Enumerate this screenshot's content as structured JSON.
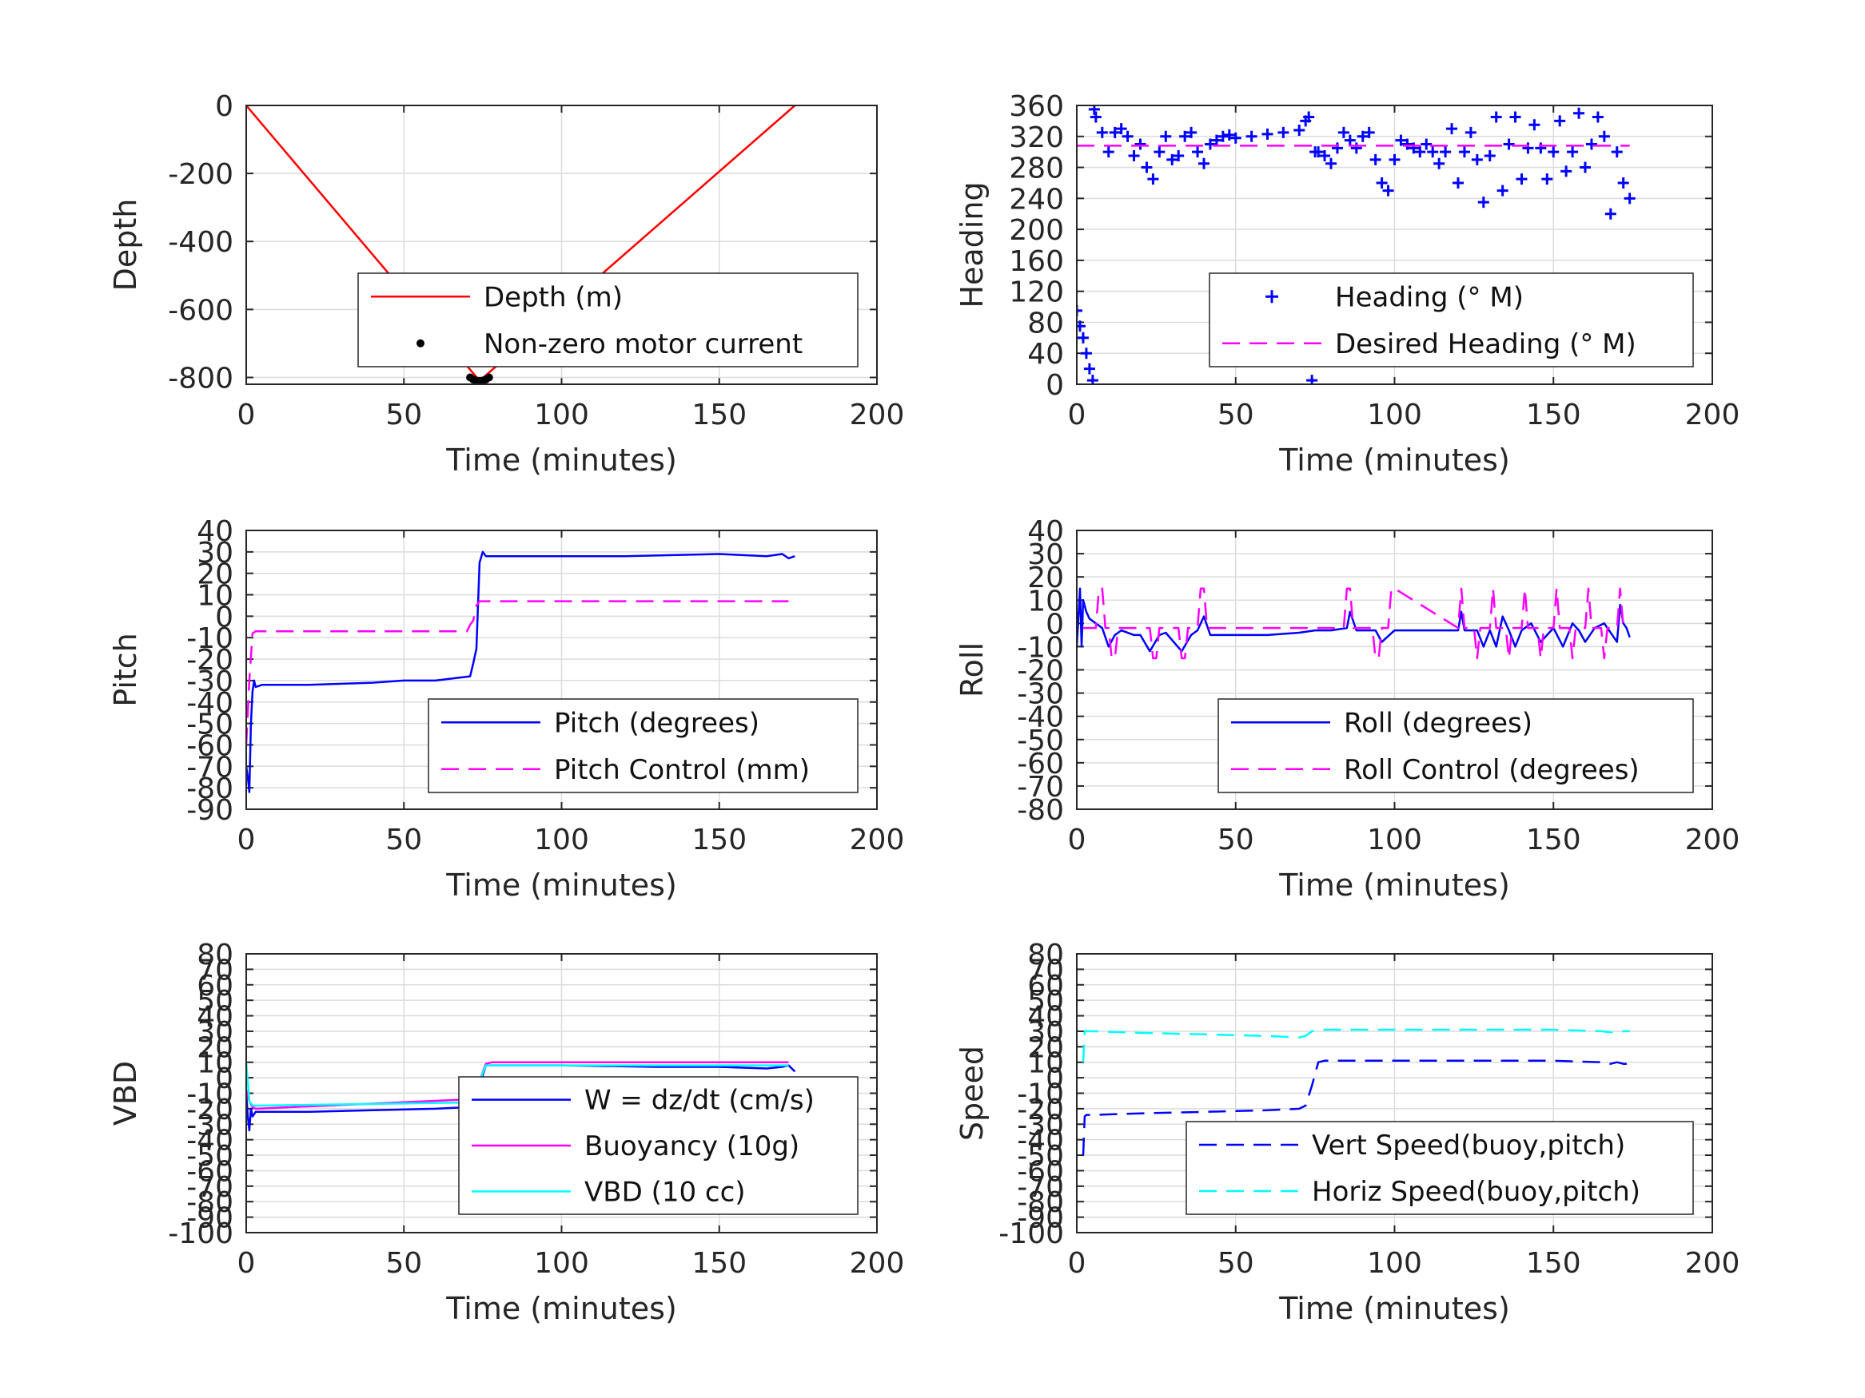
{
  "chart_data": [
    {
      "type": "line",
      "xlabel": "Time (minutes)",
      "ylabel": "Depth",
      "xlim": [
        0,
        200
      ],
      "ylim": [
        -820,
        0
      ],
      "xticks": [
        "0",
        "50",
        "100",
        "150",
        "200"
      ],
      "yticks": [
        "0",
        "-200",
        "-400",
        "-600",
        "-800"
      ],
      "grid": true,
      "legend_position": "bottom-right",
      "series": [
        {
          "name": "Depth (m)",
          "color": "#ff0000",
          "style": "solid",
          "marker": "none",
          "x": [
            0,
            74,
            174
          ],
          "y": [
            0,
            -810,
            0
          ]
        },
        {
          "name": "Non-zero motor current",
          "color": "#000000",
          "style": "none",
          "marker": "dot",
          "x": [
            71,
            72,
            73,
            74,
            75,
            76,
            77
          ],
          "y": [
            -800,
            -806,
            -809,
            -810,
            -809,
            -806,
            -800
          ]
        }
      ]
    },
    {
      "type": "scatter",
      "xlabel": "Time (minutes)",
      "ylabel": "Heading",
      "xlim": [
        0,
        200
      ],
      "ylim": [
        0,
        360
      ],
      "xticks": [
        "0",
        "50",
        "100",
        "150",
        "200"
      ],
      "yticks": [
        "0",
        "40",
        "80",
        "120",
        "160",
        "200",
        "240",
        "280",
        "320",
        "360"
      ],
      "grid": true,
      "legend_position": "bottom-right",
      "series": [
        {
          "name": "Heading (° M)",
          "color": "#0000ff",
          "style": "none",
          "marker": "plus",
          "x": [
            0,
            1,
            2,
            3,
            4,
            5,
            5.5,
            6,
            8,
            10,
            12,
            14,
            16,
            18,
            20,
            22,
            24,
            26,
            28,
            30,
            32,
            34,
            36,
            38,
            40,
            42,
            44,
            46,
            48,
            50,
            55,
            60,
            65,
            70,
            72,
            73,
            74,
            75,
            76,
            78,
            80,
            82,
            84,
            86,
            88,
            90,
            92,
            94,
            96,
            98,
            100,
            102,
            104,
            106,
            108,
            110,
            112,
            114,
            116,
            118,
            120,
            122,
            124,
            126,
            128,
            130,
            132,
            134,
            136,
            138,
            140,
            142,
            144,
            146,
            148,
            150,
            152,
            154,
            156,
            158,
            160,
            162,
            164,
            166,
            168,
            170,
            172,
            174
          ],
          "y": [
            95,
            75,
            60,
            40,
            20,
            5,
            355,
            345,
            325,
            300,
            325,
            330,
            320,
            295,
            310,
            280,
            265,
            300,
            320,
            290,
            295,
            320,
            325,
            300,
            285,
            310,
            315,
            320,
            322,
            318,
            320,
            323,
            325,
            328,
            340,
            345,
            5,
            300,
            300,
            295,
            285,
            305,
            325,
            315,
            305,
            320,
            325,
            290,
            260,
            250,
            290,
            315,
            310,
            305,
            300,
            310,
            300,
            285,
            300,
            330,
            260,
            300,
            325,
            290,
            235,
            295,
            345,
            250,
            310,
            345,
            265,
            305,
            335,
            305,
            265,
            300,
            340,
            275,
            300,
            350,
            280,
            310,
            345,
            320,
            220,
            300,
            260,
            240
          ]
        },
        {
          "name": "Desired Heading (° M)",
          "color": "#ff00ff",
          "style": "dashed",
          "marker": "none",
          "x": [
            0,
            174
          ],
          "y": [
            308,
            308
          ]
        }
      ]
    },
    {
      "type": "line",
      "xlabel": "Time (minutes)",
      "ylabel": "Pitch",
      "xlim": [
        0,
        200
      ],
      "ylim": [
        -90,
        40
      ],
      "xticks": [
        "0",
        "50",
        "100",
        "150",
        "200"
      ],
      "yticks": [
        "40",
        "30",
        "20",
        "10",
        "0",
        "-10",
        "-20",
        "-30",
        "-40",
        "-50",
        "-60",
        "-70",
        "-80",
        "-90"
      ],
      "grid": true,
      "legend_position": "bottom-right",
      "series": [
        {
          "name": "Pitch (degrees)",
          "color": "#0000ff",
          "style": "solid",
          "marker": "none",
          "x": [
            0,
            0.5,
            1,
            1.5,
            2,
            2.5,
            3,
            5,
            20,
            40,
            50,
            60,
            71,
            72,
            73,
            74,
            75,
            76,
            80,
            100,
            120,
            150,
            165,
            170,
            172,
            174
          ],
          "y": [
            -70,
            -75,
            -82,
            -50,
            -35,
            -30,
            -33,
            -32,
            -32,
            -31,
            -30,
            -30,
            -28,
            -22,
            -15,
            25,
            30,
            28,
            28,
            28,
            28,
            29,
            28,
            29,
            27,
            28
          ]
        },
        {
          "name": "Pitch Control (mm)",
          "color": "#ff00ff",
          "style": "dashed",
          "marker": "none",
          "x": [
            0,
            1,
            2,
            3,
            5,
            70,
            71,
            72,
            73,
            74,
            75,
            76,
            172
          ],
          "y": [
            -60,
            -30,
            -8,
            -7,
            -7,
            -7,
            -4,
            -2,
            5,
            7,
            7,
            7,
            7
          ]
        }
      ]
    },
    {
      "type": "line",
      "xlabel": "Time (minutes)",
      "ylabel": "Roll",
      "xlim": [
        0,
        200
      ],
      "ylim": [
        -80,
        40
      ],
      "xticks": [
        "0",
        "50",
        "100",
        "150",
        "200"
      ],
      "yticks": [
        "40",
        "30",
        "20",
        "10",
        "0",
        "-10",
        "-20",
        "-30",
        "-40",
        "-50",
        "-60",
        "-70",
        "-80"
      ],
      "grid": true,
      "legend_position": "bottom-right",
      "series": [
        {
          "name": "Roll (degrees)",
          "color": "#0000ff",
          "style": "solid",
          "marker": "none",
          "x": [
            0,
            1,
            1.5,
            2,
            3,
            4,
            6,
            8,
            10,
            12,
            14,
            18,
            20,
            23,
            26,
            28,
            33,
            36,
            38,
            40,
            42,
            45,
            60,
            70,
            75,
            80,
            85,
            86,
            88,
            94,
            96,
            100,
            110,
            120,
            121,
            122,
            126,
            128,
            130,
            132,
            134,
            136,
            138,
            140,
            143,
            146,
            150,
            153,
            156,
            158,
            160,
            163,
            166,
            170,
            171,
            172,
            173,
            174
          ],
          "y": [
            -10,
            15,
            -10,
            10,
            5,
            2,
            0,
            -2,
            -10,
            -5,
            -3,
            -5,
            -5,
            -12,
            -5,
            -4,
            -12,
            -5,
            -3,
            3,
            -5,
            -5,
            -5,
            -4,
            -3,
            -3,
            -2,
            5,
            -3,
            -3,
            -8,
            -3,
            -3,
            -3,
            5,
            -3,
            -3,
            -10,
            -3,
            -10,
            3,
            -3,
            -10,
            -3,
            0,
            -8,
            -2,
            -10,
            0,
            -3,
            -8,
            -2,
            0,
            -8,
            8,
            0,
            -2,
            -6
          ]
        },
        {
          "name": "Roll Control (degrees)",
          "color": "#ff00ff",
          "style": "dashed",
          "marker": "none",
          "x": [
            2,
            3,
            6,
            7,
            8,
            9,
            10,
            11,
            12,
            13,
            14,
            18,
            19,
            20,
            22,
            23,
            24,
            25,
            26,
            27,
            28,
            30,
            31,
            32,
            33,
            34,
            35,
            36,
            37,
            38,
            39,
            40,
            41,
            42,
            43,
            44,
            45,
            46,
            60,
            70,
            75,
            80,
            84,
            85,
            86,
            87,
            90,
            93,
            94,
            95,
            96,
            98,
            99,
            100,
            120,
            121,
            122,
            125,
            126,
            127,
            130,
            131,
            132,
            135,
            136,
            137,
            140,
            141,
            142,
            145,
            146,
            147,
            150,
            151,
            152,
            155,
            156,
            157,
            160,
            161,
            162,
            165,
            166,
            167,
            170,
            171,
            172
          ],
          "y": [
            -2,
            -2,
            -2,
            15,
            15,
            -2,
            -2,
            -15,
            -15,
            -2,
            -2,
            -2,
            -2,
            -2,
            -2,
            -2,
            -15,
            -15,
            -2,
            -2,
            -2,
            -2,
            -2,
            -2,
            -15,
            -15,
            -2,
            -2,
            -2,
            -2,
            15,
            15,
            -2,
            -2,
            -2,
            -2,
            -2,
            -2,
            -2,
            -2,
            -2,
            -2,
            -2,
            15,
            15,
            -2,
            -2,
            -2,
            -15,
            -15,
            -2,
            -2,
            15,
            15,
            -2,
            15,
            -2,
            -2,
            -15,
            -2,
            -2,
            15,
            -2,
            -2,
            -15,
            -2,
            -2,
            15,
            -2,
            -2,
            -15,
            -2,
            -2,
            15,
            -2,
            -2,
            -15,
            -2,
            -2,
            15,
            -2,
            -2,
            -15,
            -2,
            -2,
            15,
            -2
          ]
        }
      ]
    },
    {
      "type": "line",
      "xlabel": "Time (minutes)",
      "ylabel": "VBD",
      "xlim": [
        0,
        200
      ],
      "ylim": [
        -100,
        80
      ],
      "xticks": [
        "0",
        "50",
        "100",
        "150",
        "200"
      ],
      "yticks": [
        "80",
        "70",
        "60",
        "50",
        "40",
        "30",
        "20",
        "10",
        "0",
        "-10",
        "-20",
        "-30",
        "-40",
        "-50",
        "-60",
        "-70",
        "-80",
        "-90",
        "-100"
      ],
      "grid": true,
      "legend_position": "bottom-right",
      "series": [
        {
          "name": "W = dz/dt (cm/s)",
          "color": "#0000ff",
          "style": "solid",
          "marker": "none",
          "x": [
            0,
            0.5,
            1,
            1.5,
            2,
            3,
            5,
            20,
            40,
            60,
            70,
            72,
            74,
            76,
            78,
            100,
            130,
            150,
            165,
            170,
            172,
            174
          ],
          "y": [
            -10,
            -25,
            -34,
            -20,
            -25,
            -22,
            -22,
            -22,
            -21,
            -20,
            -19,
            -15,
            -5,
            8,
            8,
            8,
            7,
            7,
            6,
            7,
            8,
            4
          ]
        },
        {
          "name": "Buoyancy (10g)",
          "color": "#ff00ff",
          "style": "solid",
          "marker": "none",
          "x": [
            0,
            1,
            2,
            3,
            70,
            72,
            74,
            76,
            78,
            100,
            150,
            172
          ],
          "y": [
            -8,
            -15,
            -19,
            -20,
            -14,
            -12,
            -2,
            9,
            10,
            10,
            10,
            10
          ]
        },
        {
          "name": "VBD (10 cc)",
          "color": "#00ffff",
          "style": "solid",
          "marker": "none",
          "x": [
            0,
            1,
            2,
            3,
            70,
            72,
            74,
            76,
            78,
            100,
            150,
            172
          ],
          "y": [
            10,
            -15,
            -18,
            -18,
            -16,
            -12,
            -2,
            8,
            8,
            8,
            8,
            8
          ]
        }
      ]
    },
    {
      "type": "line",
      "xlabel": "Time (minutes)",
      "ylabel": "Speed",
      "xlim": [
        0,
        200
      ],
      "ylim": [
        -100,
        80
      ],
      "xticks": [
        "0",
        "50",
        "100",
        "150",
        "200"
      ],
      "yticks": [
        "80",
        "70",
        "60",
        "50",
        "40",
        "30",
        "20",
        "10",
        "0",
        "-10",
        "-20",
        "-30",
        "-40",
        "-50",
        "-60",
        "-70",
        "-80",
        "-90",
        "-100"
      ],
      "grid": true,
      "legend_position": "bottom-right",
      "series": [
        {
          "name": "Vert Speed(buoy,pitch)",
          "color": "#0000ff",
          "style": "dashed",
          "marker": "none",
          "x": [
            2,
            2.5,
            3,
            5,
            20,
            40,
            60,
            70,
            72,
            74,
            76,
            78,
            100,
            130,
            150,
            165,
            168,
            170,
            172,
            174
          ],
          "y": [
            -50,
            -25,
            -24,
            -24,
            -23,
            -22,
            -21,
            -20,
            -18,
            -5,
            10,
            11,
            11,
            11,
            11,
            10,
            9,
            10,
            9,
            9
          ]
        },
        {
          "name": "Horiz Speed(buoy,pitch)",
          "color": "#00ffff",
          "style": "dashed",
          "marker": "none",
          "x": [
            2,
            2.5,
            3,
            5,
            20,
            40,
            60,
            70,
            72,
            74,
            76,
            78,
            100,
            130,
            150,
            165,
            170,
            172,
            174
          ],
          "y": [
            10,
            30,
            30,
            30,
            29,
            28,
            27,
            26,
            27,
            30,
            31,
            31,
            31,
            31,
            31,
            30,
            29,
            30,
            30
          ]
        }
      ]
    }
  ]
}
